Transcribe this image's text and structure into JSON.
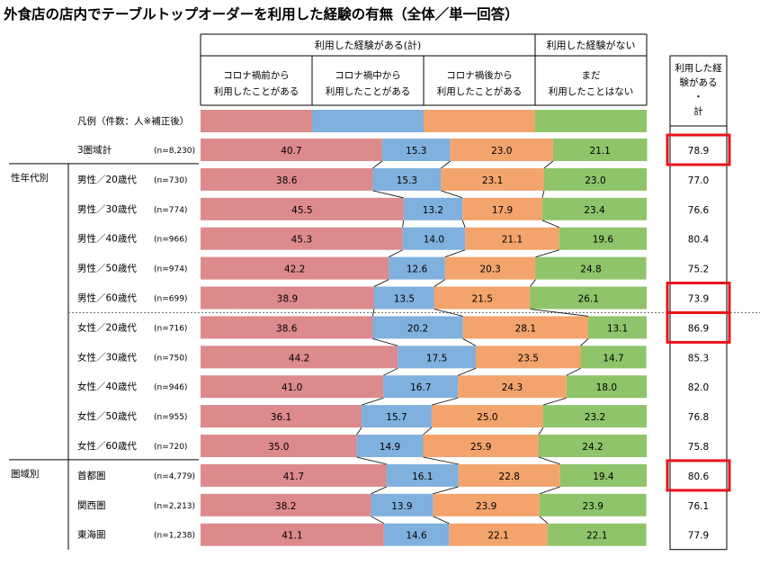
{
  "title": "外食店の店内でテーブルトップオーダーを利用した経験の有無（全体／単一回答）",
  "header": {
    "group_used": "利用した経験がある",
    "group_used_suffix": "(計)",
    "group_not_used": "利用した経験がない",
    "total_header_lines": [
      "利用した経",
      "験がある",
      "・",
      "計"
    ]
  },
  "legend_label": "凡例（件数：人※補正後）",
  "chart_data": {
    "type": "bar",
    "stacked": true,
    "normalized_to": 100,
    "unit": "%",
    "series": [
      {
        "name_lines": [
          "コロナ禍前から",
          "利用したことがある"
        ],
        "color": "#dc8a8c"
      },
      {
        "name_lines": [
          "コロナ禍中から",
          "利用したことがある"
        ],
        "color": "#80b0dd"
      },
      {
        "name_lines": [
          "コロナ禍後から",
          "利用したことがある"
        ],
        "color": "#f2a46c"
      },
      {
        "name_lines": [
          "まだ",
          "利用したことはない"
        ],
        "color": "#8fc46a"
      }
    ],
    "groups": [
      {
        "label": "",
        "rows": [
          {
            "label": "3圏域計",
            "n": "(n=8,230)",
            "values": [
              40.7,
              15.3,
              23.0,
              21.1
            ],
            "total": "78.9",
            "highlight": true
          }
        ]
      },
      {
        "label": "性年代別",
        "rows": [
          {
            "label": "男性／20歳代",
            "n": "(n=730)",
            "values": [
              38.6,
              15.3,
              23.1,
              23.0
            ],
            "total": "77.0",
            "highlight": false
          },
          {
            "label": "男性／30歳代",
            "n": "(n=774)",
            "values": [
              45.5,
              13.2,
              17.9,
              23.4
            ],
            "total": "76.6",
            "highlight": false
          },
          {
            "label": "男性／40歳代",
            "n": "(n=966)",
            "values": [
              45.3,
              14.0,
              21.1,
              19.6
            ],
            "total": "80.4",
            "highlight": false
          },
          {
            "label": "男性／50歳代",
            "n": "(n=974)",
            "values": [
              42.2,
              12.6,
              20.3,
              24.8
            ],
            "total": "75.2",
            "highlight": false
          },
          {
            "label": "男性／60歳代",
            "n": "(n=699)",
            "values": [
              38.9,
              13.5,
              21.5,
              26.1
            ],
            "total": "73.9",
            "highlight": true
          },
          {
            "label": "女性／20歳代",
            "n": "(n=716)",
            "values": [
              38.6,
              20.2,
              28.1,
              13.1
            ],
            "total": "86.9",
            "highlight": true
          },
          {
            "label": "女性／30歳代",
            "n": "(n=750)",
            "values": [
              44.2,
              17.5,
              23.5,
              14.7
            ],
            "total": "85.3",
            "highlight": false
          },
          {
            "label": "女性／40歳代",
            "n": "(n=946)",
            "values": [
              41.0,
              16.7,
              24.3,
              18.0
            ],
            "total": "82.0",
            "highlight": false
          },
          {
            "label": "女性／50歳代",
            "n": "(n=955)",
            "values": [
              36.1,
              15.7,
              25.0,
              23.2
            ],
            "total": "76.8",
            "highlight": false
          },
          {
            "label": "女性／60歳代",
            "n": "(n=720)",
            "values": [
              35.0,
              14.9,
              25.9,
              24.2
            ],
            "total": "75.8",
            "highlight": false
          }
        ]
      },
      {
        "label": "圏域別",
        "rows": [
          {
            "label": "首都圏",
            "n": "(n=4,779)",
            "values": [
              41.7,
              16.1,
              22.8,
              19.4
            ],
            "total": "80.6",
            "highlight": true
          },
          {
            "label": "関西圏",
            "n": "(n=2,213)",
            "values": [
              38.2,
              13.9,
              23.9,
              23.9
            ],
            "total": "76.1",
            "highlight": false
          },
          {
            "label": "東海圏",
            "n": "(n=1,238)",
            "values": [
              41.1,
              14.6,
              22.1,
              22.1
            ],
            "total": "77.9",
            "highlight": false
          }
        ]
      }
    ],
    "colors": {
      "highlight_box": "#e8141b"
    }
  }
}
